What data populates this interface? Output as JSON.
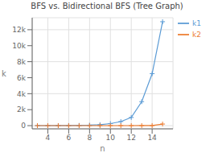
{
  "chart_data": {
    "type": "line",
    "title": "BFS vs. Bidirectional BFS (Tree Graph)",
    "xlabel": "n",
    "ylabel": "k",
    "x": [
      3,
      4,
      5,
      6,
      7,
      8,
      9,
      10,
      11,
      12,
      13,
      14,
      15
    ],
    "series": [
      {
        "name": "k1",
        "color": "#5b9bd5",
        "marker": "+",
        "values": [
          2,
          4,
          8,
          16,
          32,
          62,
          126,
          254,
          510,
          1022,
          3000,
          6500,
          13000
        ]
      },
      {
        "name": "k2",
        "color": "#ed7d31",
        "marker": "+",
        "values": [
          2,
          2,
          2,
          2,
          2,
          2,
          4,
          4,
          4,
          4,
          8,
          8,
          200
        ]
      }
    ],
    "xlim": [
      2.5,
      16
    ],
    "ylim": [
      -400,
      13500
    ],
    "xticks": [
      4,
      6,
      8,
      10,
      12,
      14
    ],
    "yticks": [
      {
        "value": 0,
        "label": "0"
      },
      {
        "value": 2000,
        "label": "2k"
      },
      {
        "value": 4000,
        "label": "4k"
      },
      {
        "value": 6000,
        "label": "6k"
      },
      {
        "value": 8000,
        "label": "8k"
      },
      {
        "value": 10000,
        "label": "10k"
      },
      {
        "value": 12000,
        "label": "12k"
      }
    ],
    "grid": true,
    "legend": "upper right"
  }
}
